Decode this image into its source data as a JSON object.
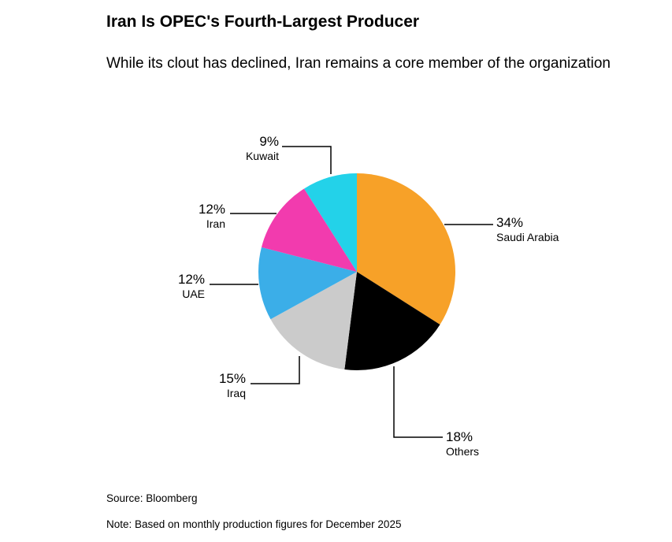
{
  "chart_data": {
    "type": "pie",
    "title": "Iran Is OPEC's Fourth-Largest Producer",
    "subtitle": "While its clout has declined, Iran remains a core member of the organization",
    "source": "Source: Bloomberg",
    "note": "Note: Based on monthly production figures for December 2025",
    "direction": "clockwise",
    "start_angle_deg": 0,
    "legend": "none",
    "labels": "external-callouts-with-leader-lines",
    "slices": [
      {
        "label": "Saudi Arabia",
        "value": 34,
        "percent_text": "34%",
        "color": "#F7A128"
      },
      {
        "label": "Others",
        "value": 18,
        "percent_text": "18%",
        "color": "#000000"
      },
      {
        "label": "Iraq",
        "value": 15,
        "percent_text": "15%",
        "color": "#CBCBCB"
      },
      {
        "label": "UAE",
        "value": 12,
        "percent_text": "12%",
        "color": "#3BAEE8"
      },
      {
        "label": "Iran",
        "value": 12,
        "percent_text": "12%",
        "color": "#F23BAE"
      },
      {
        "label": "Kuwait",
        "value": 9,
        "percent_text": "9%",
        "color": "#23D2E9"
      }
    ]
  }
}
